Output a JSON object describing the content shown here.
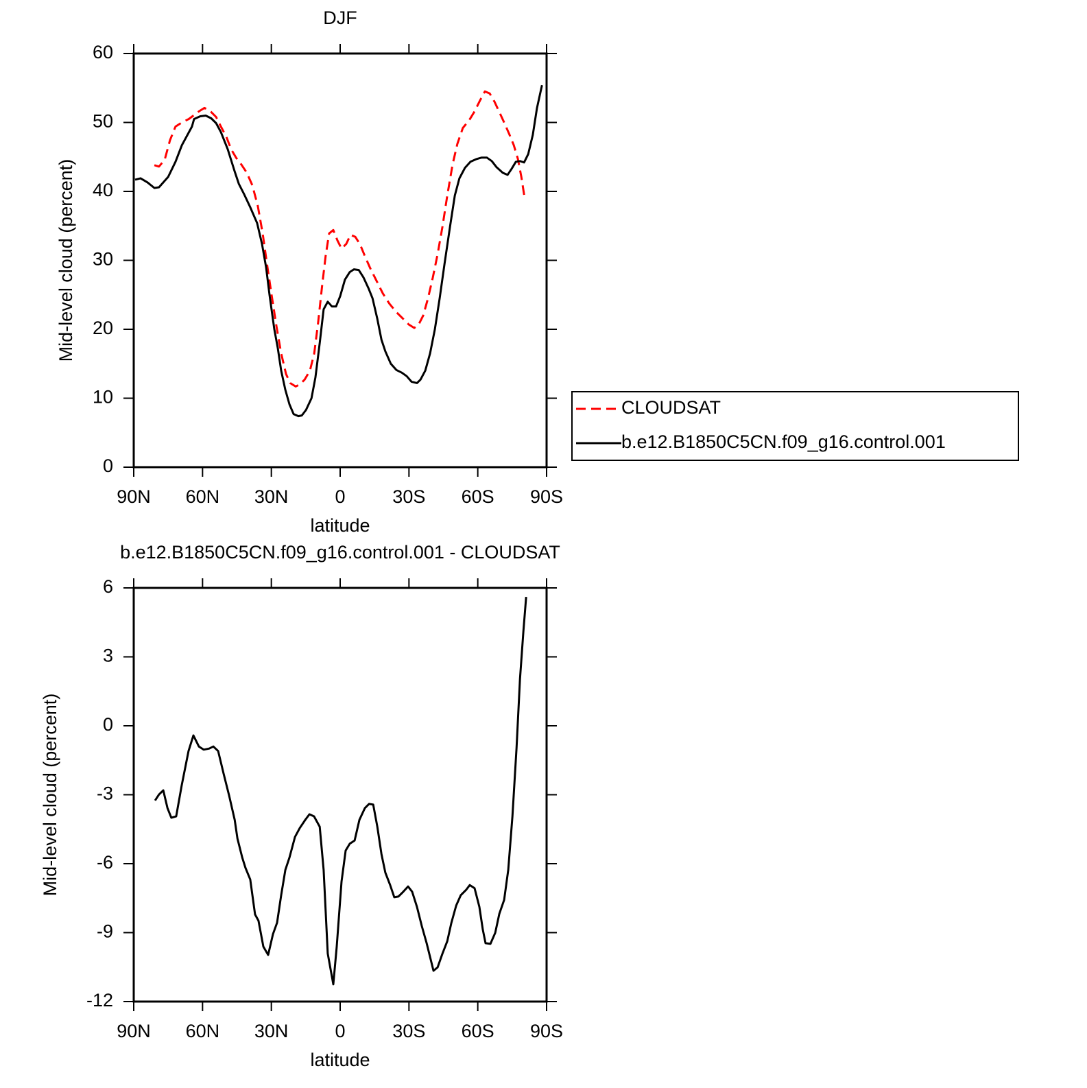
{
  "chart_data": [
    {
      "type": "line",
      "title": "DJF",
      "xlabel": "latitude",
      "ylabel": "Mid-level cloud (percent)",
      "xlim": [
        90,
        -90
      ],
      "ylim": [
        0,
        60
      ],
      "xticks": [
        {
          "value": 90,
          "label": "90N"
        },
        {
          "value": 60,
          "label": "60N"
        },
        {
          "value": 30,
          "label": "30N"
        },
        0,
        {
          "value": -30,
          "label": "30S"
        },
        {
          "value": -60,
          "label": "60S"
        },
        {
          "value": -90,
          "label": "90S"
        }
      ],
      "yticks": [
        0,
        10,
        20,
        30,
        40,
        50,
        60
      ],
      "legend": "right",
      "series": [
        {
          "name": "CLOUDSAT",
          "color": "#ff0000",
          "style": "dashed",
          "x": [
            81,
            79,
            76.5,
            74.2,
            71.8,
            69,
            66,
            64,
            61.6,
            59.2,
            57.1,
            54.1,
            52,
            49.6,
            47.5,
            45.4,
            43.1,
            40.7,
            38.3,
            35.9,
            33.8,
            31.7,
            29.9,
            27.8,
            25.7,
            23.6,
            21.8,
            19.4,
            17.6,
            15.5,
            13.2,
            11.3,
            9.6,
            7.8,
            6.3,
            4.8,
            3,
            1.2,
            -0.6,
            -2.7,
            -4.5,
            -6.6,
            -8.7,
            -10.8,
            -13.2,
            -16.2,
            -18.6,
            -21.5,
            -24.5,
            -27.5,
            -29.9,
            -32.3,
            -34.1,
            -36.2,
            -38.3,
            -40.4,
            -42.5,
            -44.6,
            -46.7,
            -49,
            -51.1,
            -53.5,
            -56.2,
            -58.6,
            -61,
            -63.1,
            -65.2,
            -67.3,
            -69.4,
            -71.5,
            -73.6,
            -75.7,
            -77.5,
            -79,
            -80.5
          ],
          "values": [
            43.8,
            43.6,
            44.6,
            47.4,
            49.4,
            50.0,
            50.5,
            51.0,
            51.6,
            52.1,
            51.8,
            50.8,
            49.4,
            47.9,
            46.1,
            44.9,
            43.9,
            42.7,
            40.9,
            37.9,
            33.9,
            29.0,
            25.0,
            20.5,
            16.5,
            13.5,
            12.2,
            11.7,
            12.0,
            12.7,
            14.0,
            16.5,
            21.0,
            26.5,
            30.7,
            33.9,
            34.4,
            32.9,
            31.7,
            32.4,
            33.7,
            33.4,
            32.3,
            30.6,
            28.8,
            26.8,
            25.2,
            23.7,
            22.5,
            21.5,
            20.7,
            20.2,
            20.6,
            22.0,
            24.5,
            27.5,
            30.9,
            34.9,
            39.4,
            43.9,
            46.9,
            49.2,
            50.3,
            51.6,
            53.2,
            54.5,
            54.2,
            53.0,
            51.5,
            50.0,
            48.4,
            46.7,
            44.7,
            42.1,
            38.9
          ]
        },
        {
          "name": "b.e12.B1850C5CN.f09_g16.control.001",
          "color": "#000000",
          "style": "solid",
          "x": [
            89.4,
            87,
            84,
            81,
            79,
            75,
            71.8,
            69,
            64.6,
            63.7,
            61,
            58.6,
            56.2,
            54.1,
            52,
            49,
            46,
            44.2,
            41.9,
            39.2,
            36.2,
            34.1,
            32.3,
            30.8,
            28.7,
            27.2,
            25.7,
            23.9,
            22.1,
            20.3,
            18.2,
            16.7,
            14.9,
            12.5,
            10.8,
            8.9,
            7.2,
            5.4,
            3.6,
            1.8,
            0,
            -2.1,
            -4.2,
            -6,
            -8.1,
            -10.2,
            -12.3,
            -14.1,
            -16.2,
            -18,
            -19.7,
            -22.1,
            -24.5,
            -26.9,
            -29,
            -31.1,
            -33.5,
            -35,
            -37.1,
            -39.2,
            -41.3,
            -43.4,
            -45.5,
            -47.9,
            -50,
            -52,
            -54.4,
            -56.8,
            -59.5,
            -61.6,
            -64,
            -66.1,
            -68.2,
            -70.9,
            -73,
            -74.8,
            -76.6,
            -78.4,
            -80.2,
            -82,
            -84,
            -85.8,
            -88
          ],
          "values": [
            41.7,
            41.9,
            41.3,
            40.5,
            40.6,
            42.1,
            44.3,
            46.7,
            49.4,
            50.5,
            50.9,
            51.0,
            50.6,
            49.9,
            48.6,
            46.1,
            42.9,
            41.1,
            39.6,
            37.7,
            35.4,
            32.4,
            29.0,
            25.0,
            20.0,
            17.3,
            14.0,
            11.2,
            9.1,
            7.7,
            7.4,
            7.5,
            8.3,
            10.0,
            13.0,
            18.0,
            22.9,
            24.0,
            23.3,
            23.3,
            24.8,
            27.2,
            28.3,
            28.7,
            28.6,
            27.5,
            26.0,
            24.5,
            21.5,
            18.5,
            16.8,
            15.0,
            14.1,
            13.7,
            13.2,
            12.4,
            12.2,
            12.7,
            14.0,
            16.5,
            20.0,
            24.5,
            29.5,
            34.9,
            39.4,
            41.9,
            43.4,
            44.3,
            44.7,
            44.9,
            44.9,
            44.4,
            43.5,
            42.7,
            42.4,
            43.3,
            44.3,
            44.4,
            44.2,
            45.4,
            48.2,
            52.1,
            55.4
          ]
        }
      ]
    },
    {
      "type": "line",
      "title": "b.e12.B1850C5CN.f09_g16.control.001 - CLOUDSAT",
      "xlabel": "latitude",
      "ylabel": "Mid-level cloud (percent)",
      "xlim": [
        90,
        -90
      ],
      "ylim": [
        -12,
        6
      ],
      "xticks": [
        {
          "value": 90,
          "label": "90N"
        },
        {
          "value": 60,
          "label": "60N"
        },
        {
          "value": 30,
          "label": "30N"
        },
        0,
        {
          "value": -30,
          "label": "30S"
        },
        {
          "value": -60,
          "label": "60S"
        },
        {
          "value": -90,
          "label": "90S"
        }
      ],
      "yticks": [
        -12,
        -9,
        -6,
        -3,
        0,
        3,
        6
      ],
      "series": [
        {
          "color": "#000000",
          "style": "solid",
          "x": [
            80.7,
            79,
            77.1,
            75.3,
            73.6,
            71.5,
            69.1,
            66.1,
            64,
            61.6,
            59.5,
            57.1,
            55.3,
            53.2,
            50.8,
            48.4,
            46,
            44.8,
            42.7,
            41.3,
            39.2,
            37.1,
            35.6,
            33.5,
            31.4,
            29.3,
            27.5,
            25.7,
            23.9,
            22.1,
            19.7,
            17.6,
            15.2,
            13.4,
            11.4,
            8.9,
            7.2,
            5.4,
            3,
            1.5,
            -0.6,
            -2.4,
            -4.2,
            -6.3,
            -8.4,
            -10.8,
            -12.6,
            -14.4,
            -16.2,
            -18,
            -19.7,
            -21.8,
            -23.6,
            -25.4,
            -27.5,
            -29.6,
            -31.4,
            -33.5,
            -35.6,
            -37.7,
            -39.2,
            -40.7,
            -42.5,
            -44.6,
            -46.7,
            -48.5,
            -50.6,
            -52.6,
            -55,
            -56.5,
            -58.6,
            -60.7,
            -62.2,
            -63.4,
            -65.5,
            -67.6,
            -69.4,
            -71.5,
            -73.3,
            -75.1,
            -76.9,
            -78.4,
            -79.9,
            -81.1
          ],
          "values": [
            -3.25,
            -2.99,
            -2.81,
            -3.58,
            -4.0,
            -3.94,
            -2.6,
            -1.1,
            -0.42,
            -0.9,
            -1.04,
            -0.99,
            -0.9,
            -1.1,
            -2.09,
            -3.04,
            -4.09,
            -4.9,
            -5.73,
            -6.18,
            -6.69,
            -8.21,
            -8.48,
            -9.61,
            -9.97,
            -9.07,
            -8.57,
            -7.37,
            -6.27,
            -5.73,
            -4.84,
            -4.45,
            -4.09,
            -3.85,
            -3.94,
            -4.39,
            -6.27,
            -9.91,
            -11.25,
            -9.61,
            -6.78,
            -5.43,
            -5.13,
            -4.99,
            -4.09,
            -3.58,
            -3.4,
            -3.43,
            -4.39,
            -5.58,
            -6.39,
            -6.93,
            -7.46,
            -7.43,
            -7.22,
            -6.99,
            -7.22,
            -7.88,
            -8.72,
            -9.46,
            -10.06,
            -10.66,
            -10.51,
            -9.91,
            -9.37,
            -8.57,
            -7.82,
            -7.37,
            -7.13,
            -6.93,
            -7.07,
            -7.88,
            -8.87,
            -9.46,
            -9.49,
            -9.01,
            -8.18,
            -7.58,
            -6.27,
            -3.94,
            -0.96,
            2.03,
            4.12,
            5.61
          ]
        }
      ]
    }
  ]
}
